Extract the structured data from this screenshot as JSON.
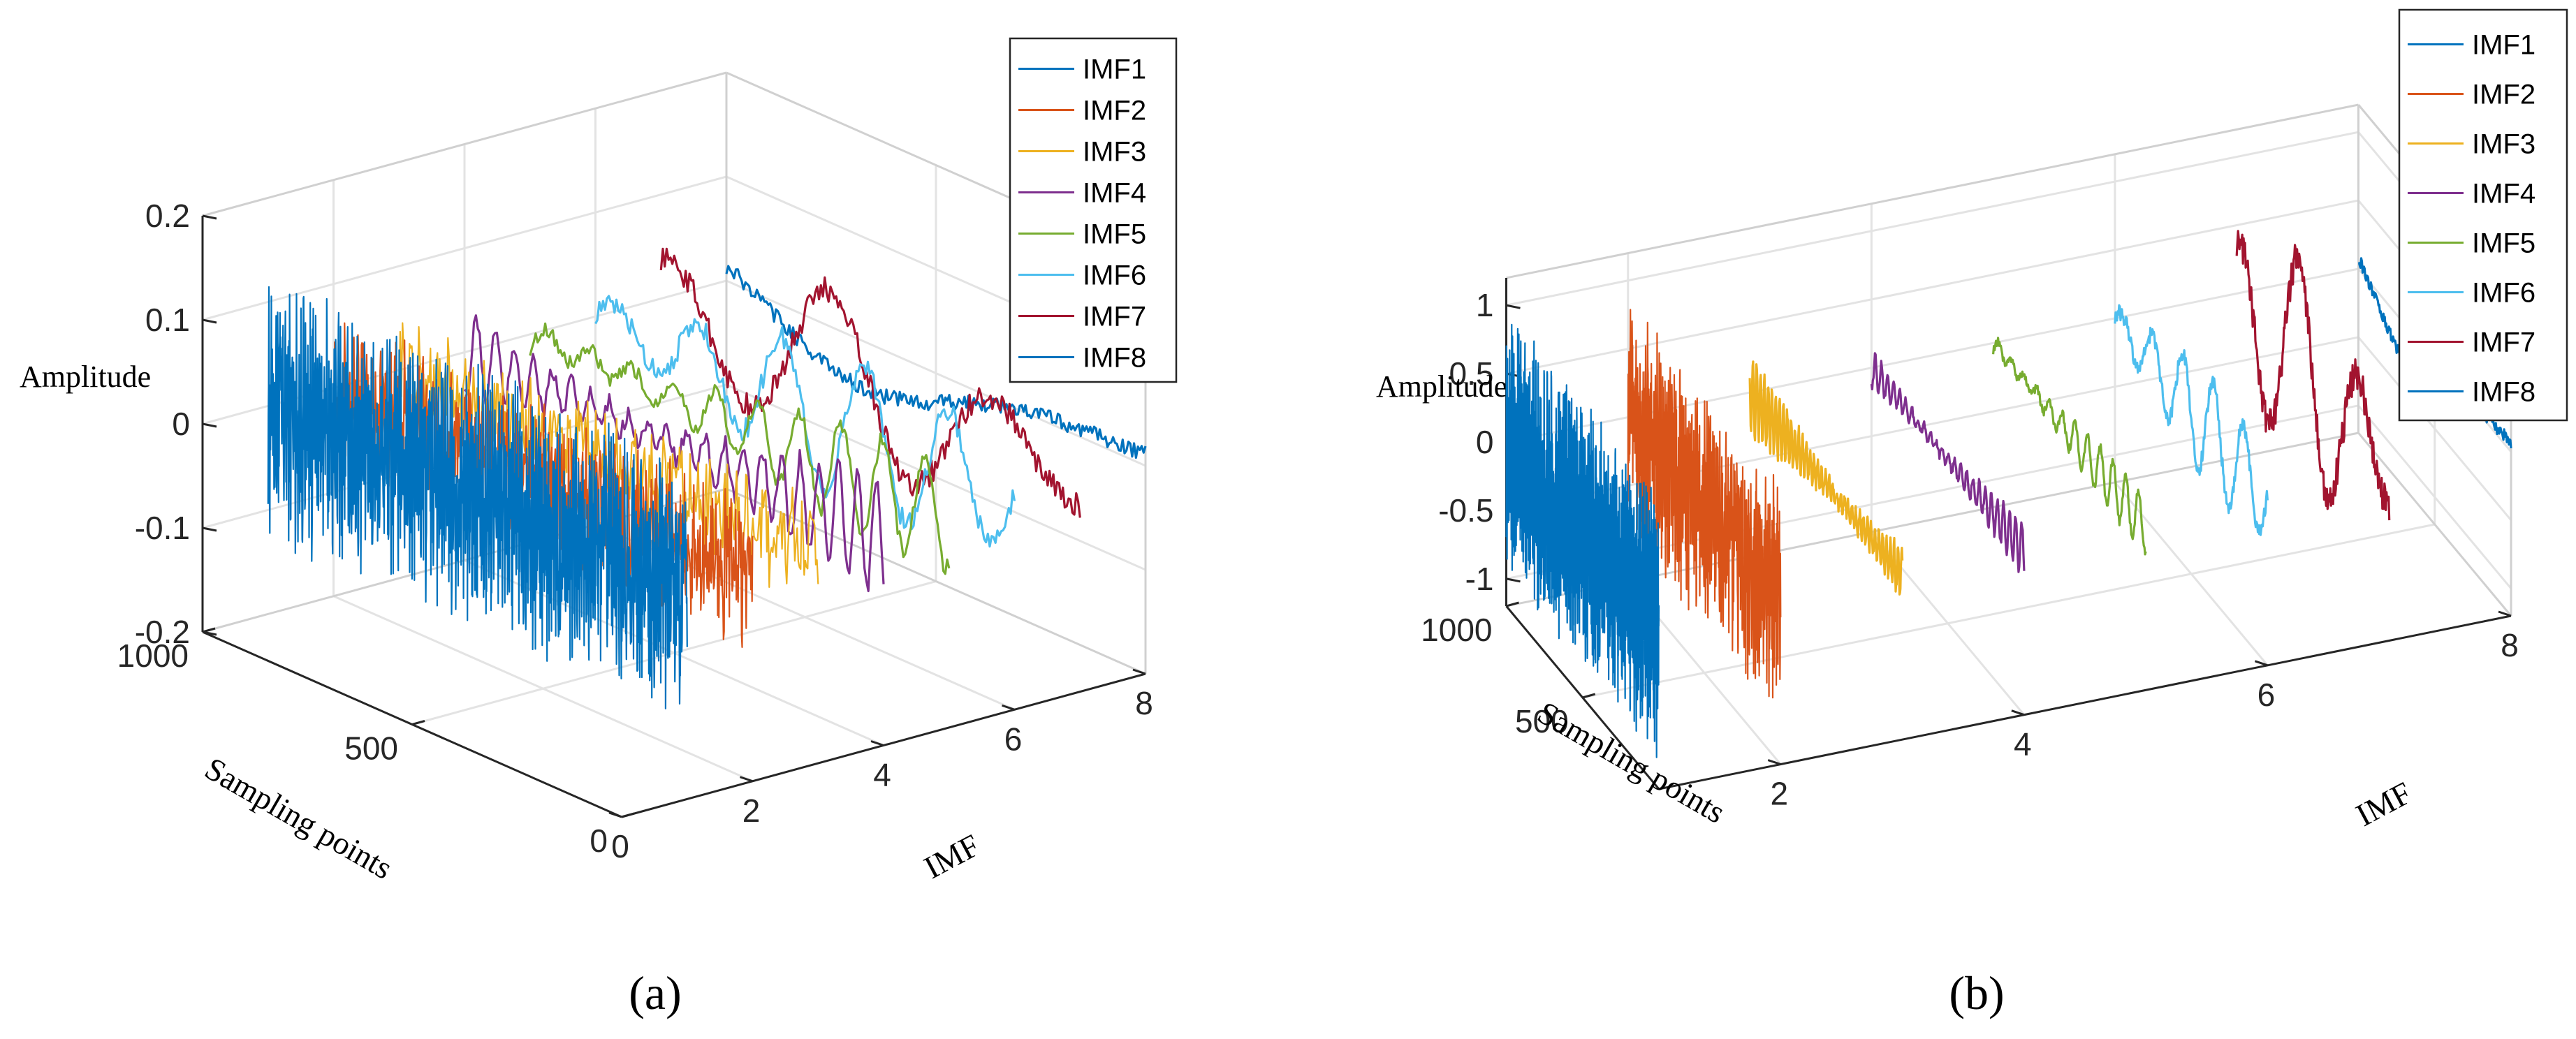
{
  "chart_data": [
    {
      "panel_label": "(a)",
      "type": "line",
      "subtype": "3d-waterfall",
      "zlabel": "Amplitude",
      "xlabel": "IMF",
      "ylabel": "Sampling points",
      "zlim": [
        -0.2,
        0.2
      ],
      "z_ticks": [
        "0.2",
        "0.1",
        "0",
        "-0.1",
        "-0.2"
      ],
      "x_ticks": [
        "0",
        "2",
        "4",
        "6",
        "8"
      ],
      "y_ticks": [
        "1000",
        "500",
        "0"
      ],
      "legend_location": "top-right",
      "series": [
        {
          "name": "IMF1",
          "imf": 1,
          "approx_amplitude": 0.12,
          "cycles": 180,
          "color": "#0072BD"
        },
        {
          "name": "IMF2",
          "imf": 2,
          "approx_amplitude": 0.07,
          "cycles": 90,
          "color": "#D95319"
        },
        {
          "name": "IMF3",
          "imf": 3,
          "approx_amplitude": 0.05,
          "cycles": 45,
          "color": "#EDB120"
        },
        {
          "name": "IMF4",
          "imf": 4,
          "approx_amplitude": 0.06,
          "cycles": 22,
          "color": "#7E2F8E"
        },
        {
          "name": "IMF5",
          "imf": 5,
          "approx_amplitude": 0.05,
          "cycles": 10,
          "color": "#77AC30"
        },
        {
          "name": "IMF6",
          "imf": 6,
          "approx_amplitude": 0.07,
          "cycles": 5,
          "color": "#4DBEEE"
        },
        {
          "name": "IMF7",
          "imf": 7,
          "approx_amplitude": 0.08,
          "cycles": 2.5,
          "color": "#A2142F"
        },
        {
          "name": "IMF8",
          "imf": 8,
          "approx_amplitude": 0.05,
          "cycles": 0.8,
          "color": "#0072BD"
        }
      ]
    },
    {
      "panel_label": "(b)",
      "type": "line",
      "subtype": "3d-waterfall",
      "zlabel": "Amplitude",
      "xlabel": "IMF",
      "ylabel": "Sampling points",
      "zlim": [
        -1.2,
        1.2
      ],
      "z_ticks": [
        "1",
        "0.5",
        "0",
        "-0.5",
        "-1"
      ],
      "x_ticks": [
        "2",
        "4",
        "6",
        "8"
      ],
      "y_ticks": [
        "1000",
        "500"
      ],
      "legend_location": "top-right",
      "series": [
        {
          "name": "IMF1",
          "imf": 1,
          "approx_amplitude": 0.9,
          "cycles": 150,
          "color": "#0072BD"
        },
        {
          "name": "IMF2",
          "imf": 2,
          "approx_amplitude": 0.8,
          "cycles": 80,
          "color": "#D95319"
        },
        {
          "name": "IMF3",
          "imf": 3,
          "approx_amplitude": 0.3,
          "cycles": 40,
          "color": "#EDB120"
        },
        {
          "name": "IMF4",
          "imf": 4,
          "approx_amplitude": 0.2,
          "cycles": 25,
          "color": "#7E2F8E"
        },
        {
          "name": "IMF5",
          "imf": 5,
          "approx_amplitude": 0.2,
          "cycles": 12,
          "color": "#77AC30"
        },
        {
          "name": "IMF6",
          "imf": 6,
          "approx_amplitude": 0.4,
          "cycles": 5,
          "color": "#4DBEEE"
        },
        {
          "name": "IMF7",
          "imf": 7,
          "approx_amplitude": 0.8,
          "cycles": 2.5,
          "color": "#A2142F"
        },
        {
          "name": "IMF8",
          "imf": 8,
          "approx_amplitude": 0.3,
          "cycles": 0.8,
          "color": "#0072BD"
        }
      ]
    }
  ]
}
